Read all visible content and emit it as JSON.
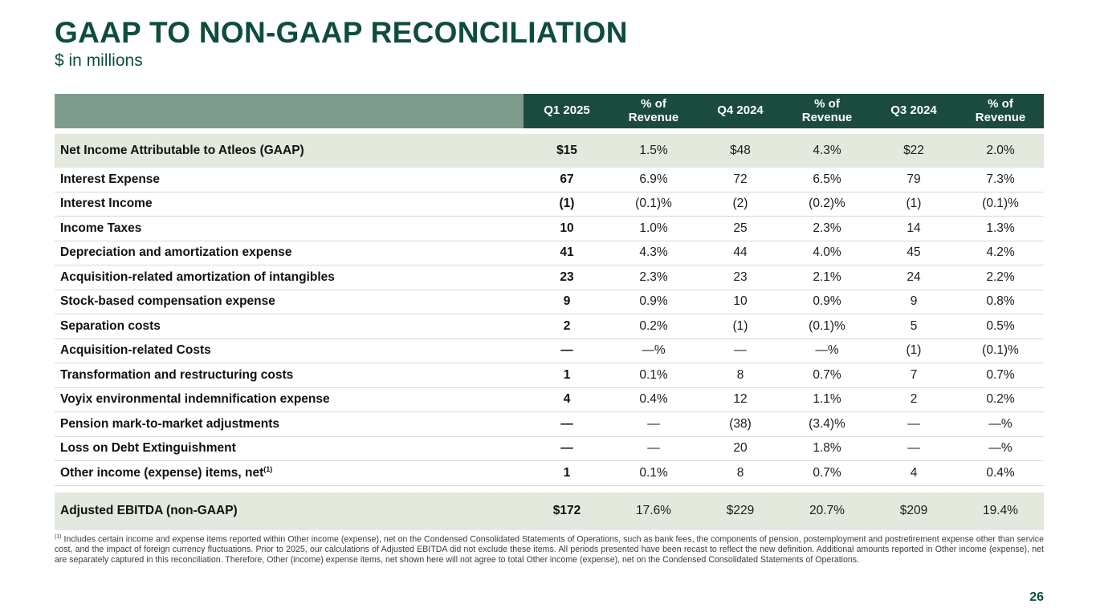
{
  "slide": {
    "title": "GAAP TO NON-GAAP RECONCILIATION",
    "subtitle": "$ in millions",
    "page_number": "26"
  },
  "colors": {
    "title_green": "#0F4C3F",
    "header_bg_green": "#1B4A3E",
    "header_label_sage": "#7E9C8D",
    "highlight_row_bg": "#E3E9DC",
    "row_separator": "#D8D8D8"
  },
  "table": {
    "columns": [
      "Q1 2025",
      "% of Revenue",
      "Q4 2024",
      "% of Revenue",
      "Q3 2024",
      "% of Revenue"
    ],
    "rows": [
      {
        "label": "Net Income Attributable to Atleos (GAAP)",
        "values": [
          "$15",
          "1.5%",
          "$48",
          "4.3%",
          "$22",
          "2.0%"
        ],
        "highlight": true
      },
      {
        "label": "Interest Expense",
        "values": [
          "67",
          "6.9%",
          "72",
          "6.5%",
          "79",
          "7.3%"
        ]
      },
      {
        "label": "Interest Income",
        "values": [
          "(1)",
          "(0.1)%",
          "(2)",
          "(0.2)%",
          "(1)",
          "(0.1)%"
        ]
      },
      {
        "label": "Income Taxes",
        "values": [
          "10",
          "1.0%",
          "25",
          "2.3%",
          "14",
          "1.3%"
        ]
      },
      {
        "label": "Depreciation and amortization expense",
        "values": [
          "41",
          "4.3%",
          "44",
          "4.0%",
          "45",
          "4.2%"
        ]
      },
      {
        "label": "Acquisition-related amortization of intangibles",
        "values": [
          "23",
          "2.3%",
          "23",
          "2.1%",
          "24",
          "2.2%"
        ]
      },
      {
        "label": "Stock-based compensation expense",
        "values": [
          "9",
          "0.9%",
          "10",
          "0.9%",
          "9",
          "0.8%"
        ]
      },
      {
        "label": "Separation costs",
        "values": [
          "2",
          "0.2%",
          "(1)",
          "(0.1)%",
          "5",
          "0.5%"
        ]
      },
      {
        "label": "Acquisition-related Costs",
        "values": [
          "—",
          "—%",
          "—",
          "—%",
          "(1)",
          "(0.1)%"
        ]
      },
      {
        "label": "Transformation and restructuring costs",
        "values": [
          "1",
          "0.1%",
          "8",
          "0.7%",
          "7",
          "0.7%"
        ]
      },
      {
        "label": "Voyix environmental indemnification expense",
        "values": [
          "4",
          "0.4%",
          "12",
          "1.1%",
          "2",
          "0.2%"
        ]
      },
      {
        "label": "Pension mark-to-market adjustments",
        "values": [
          "—",
          "—",
          "(38)",
          "(3.4)%",
          "—",
          "—%"
        ]
      },
      {
        "label": "Loss on Debt Extinguishment",
        "values": [
          "—",
          "—",
          "20",
          "1.8%",
          "—",
          "—%"
        ]
      },
      {
        "label": "Other income (expense) items, net",
        "sup": "(1)",
        "values": [
          "1",
          "0.1%",
          "8",
          "0.7%",
          "4",
          "0.4%"
        ]
      },
      {
        "label": "Adjusted EBITDA (non-GAAP)",
        "values": [
          "$172",
          "17.6%",
          "$229",
          "20.7%",
          "$209",
          "19.4%"
        ],
        "highlight": true,
        "total": true
      }
    ]
  },
  "footnote": {
    "marker": "(1)",
    "text": "Includes certain income and expense items reported within Other income (expense), net on the Condensed Consolidated Statements of Operations, such as bank fees, the components of pension, postemployment and postretirement expense other than service cost, and the impact of foreign currency fluctuations. Prior to 2025, our calculations of Adjusted EBITDA did not exclude these items. All periods presented have been recast to reflect the new definition. Additional amounts reported in Other income (expense), net are separately captured in this reconciliation. Therefore, Other (income) expense items, net shown here will not agree to total Other income (expense), net on the Condensed Consolidated Statements of Operations."
  }
}
